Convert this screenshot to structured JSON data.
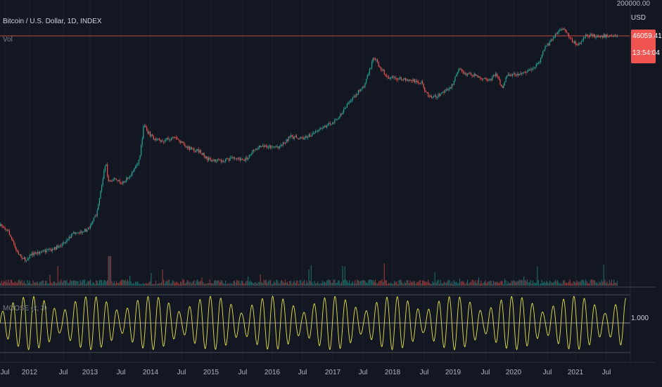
{
  "header": {
    "symbol_title": "Bitcoin / U.S. Dollar, 1D, INDEX",
    "volume_label": "Vol",
    "oscillator_label": "MOOSE (x, 3)"
  },
  "price_axis": {
    "top_label": "200000.00",
    "currency": "USD",
    "last_price": "46059.41",
    "countdown": "13:54:04",
    "oscillator_level": "1.000"
  },
  "colors": {
    "background": "#131722",
    "up": "#26a69a",
    "down": "#ef5350",
    "oscillator": "#e6e246",
    "price_tag": "#f05350"
  },
  "x_axis_labels": [
    "Jul",
    "2012",
    "Jul",
    "2013",
    "Jul",
    "2014",
    "Jul",
    "2015",
    "Jul",
    "2016",
    "Jul",
    "2017",
    "Jul",
    "2018",
    "Jul",
    "2019",
    "Jul",
    "2020",
    "Jul",
    "2021",
    "Jul"
  ],
  "chart_data": {
    "type": "candlestick",
    "symbol": "Bitcoin / U.S. Dollar",
    "interval": "1D",
    "log_scale": true,
    "x_range": [
      "2011-06",
      "2021-09"
    ],
    "price_series": {
      "t": [
        2011.45,
        2011.55,
        2011.7,
        2011.85,
        2011.95,
        2012.1,
        2012.3,
        2012.5,
        2012.7,
        2012.85,
        2012.95,
        2013.1,
        2013.26,
        2013.3,
        2013.4,
        2013.55,
        2013.7,
        2013.85,
        2013.93,
        2014.0,
        2014.1,
        2014.2,
        2014.35,
        2014.5,
        2014.7,
        2014.9,
        2015.05,
        2015.3,
        2015.5,
        2015.7,
        2015.85,
        2016.0,
        2016.3,
        2016.5,
        2016.7,
        2016.9,
        2017.1,
        2017.3,
        2017.5,
        2017.65,
        2017.8,
        2017.96,
        2018.05,
        2018.2,
        2018.4,
        2018.6,
        2018.8,
        2018.88,
        2018.95,
        2019.1,
        2019.3,
        2019.45,
        2019.55,
        2019.7,
        2019.85,
        2020.0,
        2020.1,
        2020.2,
        2020.3,
        2020.5,
        2020.7,
        2020.85,
        2020.95,
        2021.05,
        2021.2,
        2021.28,
        2021.35,
        2021.45,
        2021.55,
        2021.62,
        2021.68
      ],
      "price": [
        15,
        12,
        5,
        3.5,
        4.5,
        5,
        5.3,
        7,
        11,
        12,
        13,
        25,
        230,
        100,
        110,
        90,
        130,
        250,
        1150,
        800,
        600,
        550,
        580,
        600,
        400,
        350,
        250,
        230,
        270,
        240,
        380,
        430,
        430,
        650,
        610,
        730,
        1000,
        1300,
        2500,
        4000,
        6000,
        19000,
        13000,
        8000,
        7500,
        7000,
        6400,
        4000,
        3500,
        3700,
        5000,
        11000,
        9500,
        9000,
        7500,
        7200,
        9500,
        5000,
        8800,
        9200,
        11000,
        15000,
        29000,
        35000,
        58000,
        60000,
        50000,
        35000,
        32000,
        40000,
        46000
      ],
      "last": 46059.41
    },
    "volume_label": "Vol",
    "oscillator": {
      "label": "MOOSE (x, 3)",
      "level": 1.0
    }
  }
}
